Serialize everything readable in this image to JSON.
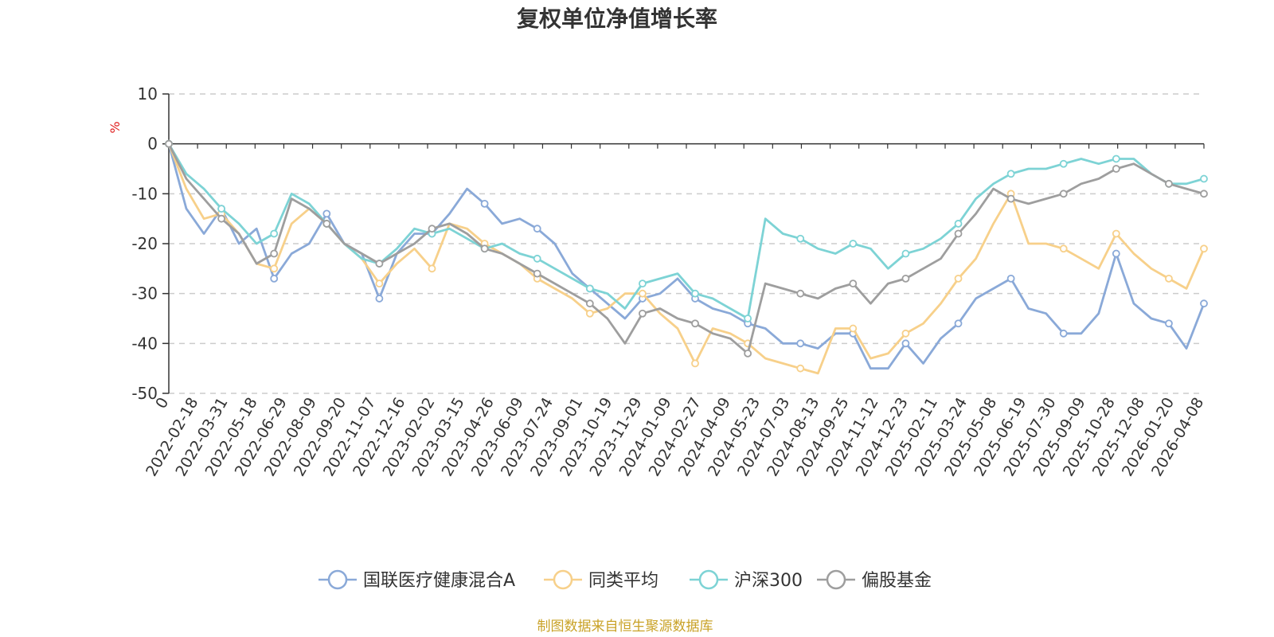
{
  "chart_data": {
    "type": "line",
    "title": "复权单位净值增长率",
    "ylabel": "%",
    "ylim": [
      -50,
      10
    ],
    "yticks": [
      10,
      0,
      -10,
      -20,
      -30,
      -40,
      -50
    ],
    "x_tick_labels": [
      "0",
      "2022-02-18",
      "2022-03-31",
      "2022-05-18",
      "2022-06-29",
      "2022-08-09",
      "2022-09-20",
      "2022-11-07",
      "2022-12-16",
      "2023-02-02",
      "2023-03-15",
      "2023-04-26",
      "2023-06-09",
      "2023-07-24",
      "2023-09-01",
      "2023-10-19",
      "2023-11-29",
      "2024-01-09",
      "2024-02-27",
      "2024-04-09",
      "2024-05-23",
      "2024-07-03",
      "2024-08-13",
      "2024-09-25",
      "2024-11-12",
      "2024-12-23",
      "2025-02-11",
      "2025-03-24",
      "2025-05-08",
      "2025-06-19",
      "2025-07-30",
      "2025-09-09",
      "2025-10-28",
      "2025-12-08",
      "2026-01-20",
      "2026-04-08"
    ],
    "grid": true,
    "legend_position": "bottom",
    "series": [
      {
        "name": "国联医疗健康混合A",
        "color": "#8aa9d8",
        "values": [
          0,
          -13,
          -18,
          -13,
          -20,
          -17,
          -27,
          -22,
          -20,
          -14,
          -20,
          -22,
          -31,
          -22,
          -18,
          -18,
          -14,
          -9,
          -12,
          -16,
          -15,
          -17,
          -20,
          -26,
          -29,
          -32,
          -35,
          -31,
          -30,
          -27,
          -31,
          -33,
          -34,
          -36,
          -37,
          -40,
          -40,
          -41,
          -38,
          -38,
          -45,
          -45,
          -40,
          -44,
          -39,
          -36,
          -31,
          -29,
          -27,
          -33,
          -34,
          -38,
          -38,
          -34,
          -22,
          -32,
          -35,
          -36,
          -41,
          -32
        ]
      },
      {
        "name": "同类平均",
        "color": "#f7d08a",
        "values": [
          0,
          -9,
          -15,
          -14,
          -18,
          -24,
          -25,
          -16,
          -13,
          -16,
          -20,
          -23,
          -28,
          -24,
          -21,
          -25,
          -16,
          -17,
          -20,
          -22,
          -24,
          -27,
          -29,
          -31,
          -34,
          -33,
          -30,
          -30,
          -34,
          -37,
          -44,
          -37,
          -38,
          -40,
          -43,
          -44,
          -45,
          -46,
          -37,
          -37,
          -43,
          -42,
          -38,
          -36,
          -32,
          -27,
          -23,
          -16,
          -10,
          -20,
          -20,
          -21,
          -23,
          -25,
          -18,
          -22,
          -25,
          -27,
          -29,
          -21
        ]
      },
      {
        "name": "沪深300",
        "color": "#7dd3d5",
        "values": [
          0,
          -6,
          -9,
          -13,
          -16,
          -20,
          -18,
          -10,
          -12,
          -16,
          -20,
          -23,
          -24,
          -21,
          -17,
          -18,
          -17,
          -19,
          -21,
          -20,
          -22,
          -23,
          -25,
          -27,
          -29,
          -30,
          -33,
          -28,
          -27,
          -26,
          -30,
          -31,
          -33,
          -35,
          -15,
          -18,
          -19,
          -21,
          -22,
          -20,
          -21,
          -25,
          -22,
          -21,
          -19,
          -16,
          -11,
          -8,
          -6,
          -5,
          -5,
          -4,
          -3,
          -4,
          -3,
          -3,
          -6,
          -8,
          -8,
          -7
        ]
      },
      {
        "name": "偏股基金",
        "color": "#9e9e9e",
        "values": [
          0,
          -7,
          -11,
          -15,
          -18,
          -24,
          -22,
          -11,
          -13,
          -16,
          -20,
          -22,
          -24,
          -22,
          -20,
          -17,
          -16,
          -18,
          -21,
          -22,
          -24,
          -26,
          -28,
          -30,
          -32,
          -35,
          -40,
          -34,
          -33,
          -35,
          -36,
          -38,
          -39,
          -42,
          -28,
          -29,
          -30,
          -31,
          -29,
          -28,
          -32,
          -28,
          -27,
          -25,
          -23,
          -18,
          -14,
          -9,
          -11,
          -12,
          -11,
          -10,
          -8,
          -7,
          -5,
          -4,
          -6,
          -8,
          -9,
          -10
        ]
      }
    ]
  },
  "footer": {
    "source": "制图数据来自恒生聚源数据库"
  }
}
